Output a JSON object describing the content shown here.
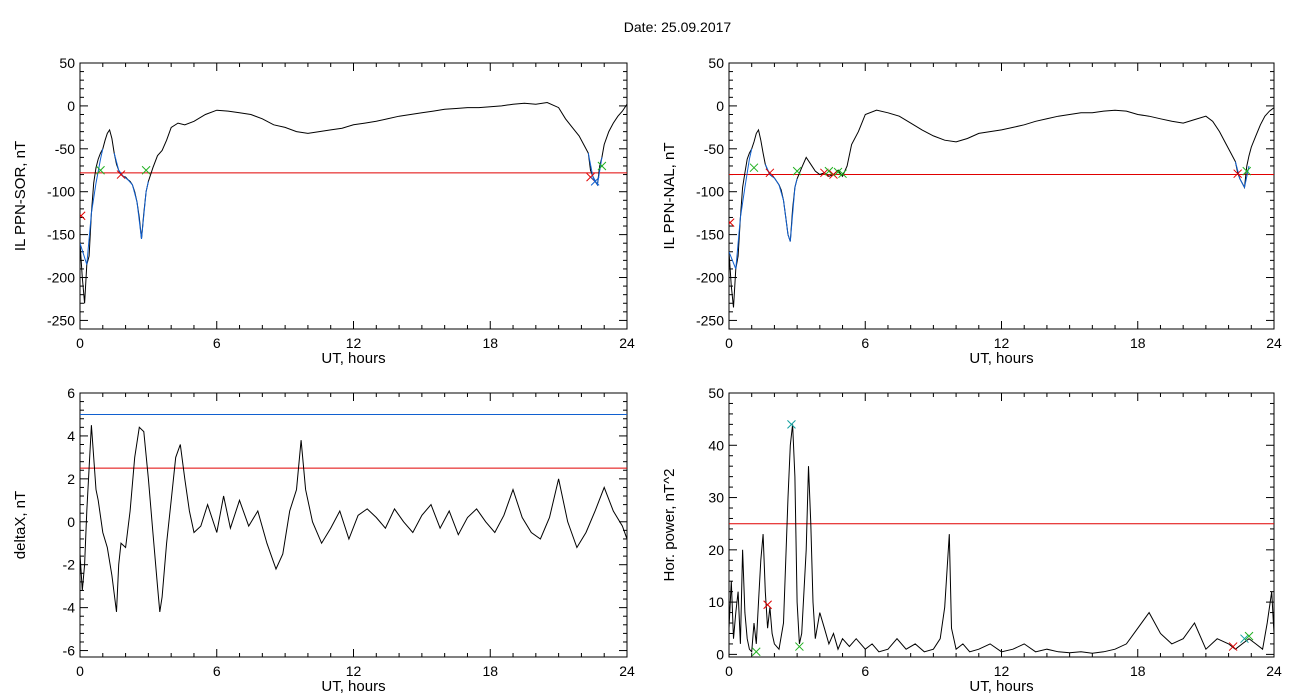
{
  "title": "Date:  25.09.2017",
  "chart_data": [
    {
      "type": "line",
      "ylabel": "IL PPN-SOR, nT",
      "xlabel": "UT, hours",
      "xlim": [
        0,
        24
      ],
      "ylim": [
        -260,
        50
      ],
      "xticks": [
        0,
        6,
        12,
        18,
        24
      ],
      "yticks": [
        -250,
        -200,
        -150,
        -100,
        -50,
        0,
        50
      ],
      "hlines": [
        {
          "y": -78,
          "color": "#e00000"
        }
      ],
      "series": [
        {
          "color": "#000000",
          "x": [
            0,
            0.1,
            0.2,
            0.3,
            0.4,
            0.5,
            0.6,
            0.7,
            0.8,
            0.9,
            1.0,
            1.1,
            1.2,
            1.3,
            1.4,
            1.5,
            1.6,
            1.7,
            1.8,
            1.9,
            2.0,
            2.1,
            2.2,
            2.3,
            2.4,
            2.5,
            2.6,
            2.7,
            2.8,
            2.9,
            3.0,
            3.2,
            3.4,
            3.6,
            3.8,
            4.0,
            4.3,
            4.6,
            5.0,
            5.5,
            6.0,
            6.5,
            7.0,
            7.5,
            8.0,
            8.5,
            9.0,
            9.5,
            10.0,
            10.5,
            11.0,
            11.5,
            12.0,
            12.5,
            13.0,
            13.5,
            14.0,
            14.5,
            15.0,
            15.5,
            16.0,
            16.5,
            17.0,
            17.5,
            18.0,
            18.5,
            19.0,
            19.5,
            20.0,
            20.5,
            21.0,
            21.3,
            21.6,
            21.9,
            22.1,
            22.3,
            22.4,
            22.5,
            22.6,
            22.7,
            22.8,
            22.9,
            23.0,
            23.2,
            23.4,
            23.6,
            23.8,
            24.0
          ],
          "y": [
            -160,
            -200,
            -230,
            -185,
            -175,
            -125,
            -90,
            -72,
            -62,
            -55,
            -50,
            -40,
            -32,
            -28,
            -38,
            -55,
            -68,
            -75,
            -80,
            -82,
            -83,
            -86,
            -88,
            -92,
            -100,
            -112,
            -130,
            -155,
            -125,
            -100,
            -88,
            -72,
            -58,
            -52,
            -40,
            -25,
            -20,
            -22,
            -18,
            -10,
            -5,
            -6,
            -8,
            -10,
            -15,
            -22,
            -25,
            -30,
            -32,
            -30,
            -28,
            -26,
            -22,
            -20,
            -18,
            -15,
            -12,
            -10,
            -8,
            -6,
            -4,
            -3,
            -2,
            -2,
            -1,
            0,
            2,
            3,
            2,
            4,
            -2,
            -15,
            -25,
            -35,
            -45,
            -55,
            -75,
            -82,
            -88,
            -92,
            -70,
            -60,
            -45,
            -30,
            -20,
            -12,
            -6,
            2
          ]
        },
        {
          "color": "#1060d0",
          "x": [
            0,
            0.3,
            0.5,
            0.7,
            0.9,
            1.0
          ],
          "y": [
            -160,
            -185,
            -125,
            -90,
            -62,
            -50
          ]
        },
        {
          "color": "#1060d0",
          "x": [
            1.5,
            1.7,
            1.9,
            2.1,
            2.3,
            2.5,
            2.7,
            2.9,
            3.0
          ],
          "y": [
            -55,
            -75,
            -82,
            -86,
            -92,
            -112,
            -155,
            -100,
            -88
          ]
        },
        {
          "color": "#1060d0",
          "x": [
            22.3,
            22.5,
            22.7,
            22.9
          ],
          "y": [
            -55,
            -82,
            -92,
            -60
          ]
        }
      ],
      "markers": [
        {
          "x": 0.9,
          "y": -75,
          "symbol": "x",
          "color": "#20b020"
        },
        {
          "x": 1.8,
          "y": -80,
          "symbol": "x",
          "color": "#e00000"
        },
        {
          "x": 2.9,
          "y": -75,
          "symbol": "x",
          "color": "#20b020"
        },
        {
          "x": 22.4,
          "y": -83,
          "symbol": "x",
          "color": "#e00000"
        },
        {
          "x": 22.6,
          "y": -88,
          "symbol": "x",
          "color": "#1060d0"
        },
        {
          "x": 22.9,
          "y": -70,
          "symbol": "x",
          "color": "#20b020"
        },
        {
          "x": 0.05,
          "y": -128,
          "symbol": "x",
          "color": "#e00000"
        }
      ]
    },
    {
      "type": "line",
      "ylabel": "IL PPN-NAL, nT",
      "xlabel": "UT, hours",
      "xlim": [
        0,
        24
      ],
      "ylim": [
        -260,
        50
      ],
      "xticks": [
        0,
        6,
        12,
        18,
        24
      ],
      "yticks": [
        -250,
        -200,
        -150,
        -100,
        -50,
        0,
        50
      ],
      "hlines": [
        {
          "y": -80,
          "color": "#e00000"
        }
      ],
      "series": [
        {
          "color": "#000000",
          "x": [
            0,
            0.1,
            0.2,
            0.3,
            0.4,
            0.5,
            0.6,
            0.7,
            0.8,
            0.9,
            1.0,
            1.1,
            1.2,
            1.3,
            1.4,
            1.5,
            1.6,
            1.7,
            1.8,
            1.9,
            2.0,
            2.1,
            2.2,
            2.3,
            2.4,
            2.5,
            2.6,
            2.7,
            2.8,
            2.9,
            3.0,
            3.2,
            3.4,
            3.6,
            3.8,
            4.0,
            4.2,
            4.4,
            4.6,
            4.8,
            5.0,
            5.2,
            5.4,
            5.7,
            6.0,
            6.5,
            7.0,
            7.5,
            8.0,
            8.5,
            9.0,
            9.5,
            10.0,
            10.5,
            11.0,
            11.5,
            12.0,
            12.5,
            13.0,
            13.5,
            14.0,
            14.5,
            15.0,
            15.5,
            16.0,
            16.5,
            17.0,
            17.5,
            18.0,
            18.5,
            19.0,
            19.5,
            20.0,
            20.5,
            21.0,
            21.3,
            21.6,
            21.9,
            22.1,
            22.3,
            22.4,
            22.5,
            22.6,
            22.7,
            22.8,
            22.9,
            23.0,
            23.2,
            23.4,
            23.6,
            23.8,
            24.0
          ],
          "y": [
            -170,
            -210,
            -235,
            -190,
            -175,
            -130,
            -95,
            -78,
            -62,
            -55,
            -50,
            -42,
            -32,
            -28,
            -40,
            -55,
            -68,
            -75,
            -80,
            -82,
            -84,
            -88,
            -92,
            -98,
            -110,
            -130,
            -150,
            -158,
            -120,
            -95,
            -85,
            -72,
            -60,
            -68,
            -76,
            -80,
            -78,
            -82,
            -80,
            -75,
            -82,
            -70,
            -45,
            -30,
            -10,
            -5,
            -8,
            -12,
            -20,
            -28,
            -35,
            -40,
            -42,
            -38,
            -32,
            -30,
            -28,
            -25,
            -22,
            -18,
            -15,
            -12,
            -10,
            -8,
            -8,
            -6,
            -5,
            -6,
            -10,
            -12,
            -15,
            -18,
            -20,
            -16,
            -12,
            -18,
            -30,
            -45,
            -55,
            -65,
            -78,
            -85,
            -90,
            -95,
            -70,
            -58,
            -48,
            -35,
            -22,
            -12,
            -6,
            -2
          ]
        },
        {
          "color": "#1060d0",
          "x": [
            0,
            0.3,
            0.5,
            0.7,
            0.9,
            1.0
          ],
          "y": [
            -170,
            -190,
            -130,
            -95,
            -62,
            -50
          ]
        },
        {
          "color": "#1060d0",
          "x": [
            1.6,
            1.8,
            2.0,
            2.2,
            2.4,
            2.6,
            2.7,
            2.9,
            3.0
          ],
          "y": [
            -68,
            -80,
            -84,
            -92,
            -110,
            -150,
            -158,
            -95,
            -85
          ]
        },
        {
          "color": "#1060d0",
          "x": [
            22.3,
            22.5,
            22.7,
            22.9
          ],
          "y": [
            -65,
            -85,
            -95,
            -70
          ]
        }
      ],
      "markers": [
        {
          "x": 1.1,
          "y": -72,
          "symbol": "x",
          "color": "#20b020"
        },
        {
          "x": 1.8,
          "y": -78,
          "symbol": "x",
          "color": "#e00000"
        },
        {
          "x": 3.0,
          "y": -76,
          "symbol": "x",
          "color": "#20b020"
        },
        {
          "x": 4.2,
          "y": -78,
          "symbol": "x",
          "color": "#e00000"
        },
        {
          "x": 4.4,
          "y": -76,
          "symbol": "x",
          "color": "#20b020"
        },
        {
          "x": 4.6,
          "y": -80,
          "symbol": "x",
          "color": "#e00000"
        },
        {
          "x": 4.8,
          "y": -77,
          "symbol": "x",
          "color": "#20b020"
        },
        {
          "x": 5.0,
          "y": -79,
          "symbol": "x",
          "color": "#20b020"
        },
        {
          "x": 22.4,
          "y": -79,
          "symbol": "x",
          "color": "#e00000"
        },
        {
          "x": 22.8,
          "y": -76,
          "symbol": "x",
          "color": "#20b020"
        },
        {
          "x": 0.05,
          "y": -136,
          "symbol": "x",
          "color": "#e00000"
        }
      ]
    },
    {
      "type": "line",
      "ylabel": "deltaX, nT",
      "xlabel": "UT, hours",
      "xlim": [
        0,
        24
      ],
      "ylim": [
        -6.3,
        6
      ],
      "xticks": [
        0,
        6,
        12,
        18,
        24
      ],
      "yticks": [
        -6,
        -4,
        -2,
        0,
        2,
        4,
        6
      ],
      "hlines": [
        {
          "y": 5.0,
          "color": "#1060d0"
        },
        {
          "y": 2.5,
          "color": "#e00000"
        }
      ],
      "series": [
        {
          "color": "#000000",
          "x": [
            0,
            0.1,
            0.2,
            0.3,
            0.4,
            0.5,
            0.6,
            0.7,
            0.8,
            1.0,
            1.2,
            1.4,
            1.6,
            1.7,
            1.8,
            2.0,
            2.2,
            2.4,
            2.6,
            2.8,
            3.0,
            3.2,
            3.4,
            3.5,
            3.6,
            3.8,
            4.0,
            4.2,
            4.4,
            4.6,
            4.8,
            5.0,
            5.3,
            5.6,
            6.0,
            6.3,
            6.6,
            7.0,
            7.4,
            7.8,
            8.2,
            8.6,
            8.9,
            9.2,
            9.5,
            9.7,
            9.9,
            10.2,
            10.6,
            11.0,
            11.4,
            11.8,
            12.2,
            12.6,
            13.0,
            13.4,
            13.8,
            14.2,
            14.6,
            15.0,
            15.4,
            15.8,
            16.2,
            16.6,
            17.0,
            17.4,
            17.8,
            18.2,
            18.6,
            19.0,
            19.4,
            19.8,
            20.2,
            20.6,
            21.0,
            21.4,
            21.8,
            22.2,
            22.6,
            23.0,
            23.4,
            23.8,
            24.0
          ],
          "y": [
            -1.5,
            -3.2,
            -2.0,
            0.5,
            2.5,
            4.5,
            3.0,
            1.5,
            1.0,
            -0.5,
            -1.2,
            -2.5,
            -4.2,
            -2.0,
            -1.0,
            -1.2,
            0.5,
            3.0,
            4.4,
            4.2,
            2.0,
            -0.5,
            -3.0,
            -4.2,
            -3.5,
            -1.0,
            1.0,
            3.0,
            3.6,
            2.0,
            0.5,
            -0.5,
            -0.2,
            0.8,
            -0.5,
            1.2,
            -0.3,
            1.0,
            -0.2,
            0.5,
            -1.0,
            -2.2,
            -1.5,
            0.5,
            1.5,
            3.8,
            1.5,
            0.0,
            -1.0,
            -0.3,
            0.5,
            -0.8,
            0.3,
            0.6,
            0.2,
            -0.3,
            0.6,
            0.0,
            -0.5,
            0.3,
            0.8,
            -0.3,
            0.5,
            -0.6,
            0.2,
            0.6,
            0.0,
            -0.5,
            0.3,
            1.5,
            0.2,
            -0.5,
            -0.8,
            0.2,
            2.0,
            0.0,
            -1.2,
            -0.5,
            0.5,
            1.6,
            0.5,
            -0.2,
            -0.8
          ]
        }
      ],
      "markers": []
    },
    {
      "type": "line",
      "ylabel": "Hor. power, nT^2",
      "xlabel": "UT, hours",
      "xlim": [
        0,
        24
      ],
      "ylim": [
        -0.5,
        50
      ],
      "xticks": [
        0,
        6,
        12,
        18,
        24
      ],
      "yticks": [
        0,
        10,
        20,
        30,
        40,
        50
      ],
      "hlines": [
        {
          "y": 25,
          "color": "#e00000"
        }
      ],
      "series": [
        {
          "color": "#000000",
          "x": [
            0,
            0.1,
            0.2,
            0.3,
            0.4,
            0.5,
            0.6,
            0.7,
            0.8,
            0.9,
            1.0,
            1.1,
            1.2,
            1.3,
            1.4,
            1.5,
            1.6,
            1.7,
            1.8,
            1.9,
            2.0,
            2.2,
            2.4,
            2.6,
            2.7,
            2.8,
            2.9,
            3.0,
            3.1,
            3.2,
            3.4,
            3.5,
            3.6,
            3.7,
            3.8,
            4.0,
            4.2,
            4.4,
            4.6,
            4.8,
            5.0,
            5.3,
            5.6,
            6.0,
            6.3,
            6.6,
            7.0,
            7.4,
            7.8,
            8.2,
            8.6,
            9.0,
            9.3,
            9.5,
            9.7,
            9.8,
            10.0,
            10.3,
            10.6,
            11.0,
            11.5,
            12.0,
            12.5,
            13.0,
            13.5,
            14.0,
            14.5,
            15.0,
            15.5,
            16.0,
            16.5,
            17.0,
            17.5,
            18.0,
            18.5,
            19.0,
            19.5,
            20.0,
            20.5,
            21.0,
            21.5,
            22.0,
            22.3,
            22.6,
            22.9,
            23.2,
            23.5,
            23.7,
            23.9,
            24.0
          ],
          "y": [
            5,
            14,
            3,
            8,
            12,
            2,
            20,
            8,
            3,
            1,
            0.5,
            6,
            2,
            10,
            18,
            23,
            12,
            5,
            9,
            4,
            2,
            1,
            6,
            30,
            40,
            44,
            34,
            10,
            2,
            4,
            20,
            36,
            25,
            10,
            3,
            8,
            5,
            2,
            4,
            1,
            3,
            1.5,
            3,
            1,
            2,
            0.5,
            1,
            3,
            1,
            2,
            0.5,
            1,
            3,
            9,
            23,
            5,
            1,
            2,
            0.5,
            1,
            2,
            0.5,
            1,
            2,
            0.5,
            1,
            0.5,
            0.3,
            0.5,
            0.2,
            0.5,
            1,
            2,
            5,
            8,
            4,
            2,
            3,
            6,
            1,
            3,
            2,
            1,
            2,
            3,
            2,
            1,
            6,
            12,
            4
          ]
        }
      ],
      "markers": [
        {
          "x": 1.2,
          "y": 0.5,
          "symbol": "x",
          "color": "#20b020"
        },
        {
          "x": 1.7,
          "y": 9.5,
          "symbol": "x",
          "color": "#e00000"
        },
        {
          "x": 2.75,
          "y": 44,
          "symbol": "x",
          "color": "#10a0a0"
        },
        {
          "x": 3.1,
          "y": 1.5,
          "symbol": "x",
          "color": "#20b020"
        },
        {
          "x": 22.2,
          "y": 1.5,
          "symbol": "x",
          "color": "#e00000"
        },
        {
          "x": 22.7,
          "y": 3.0,
          "symbol": "x",
          "color": "#10a0a0"
        },
        {
          "x": 22.9,
          "y": 3.5,
          "symbol": "x",
          "color": "#20b020"
        }
      ]
    }
  ]
}
